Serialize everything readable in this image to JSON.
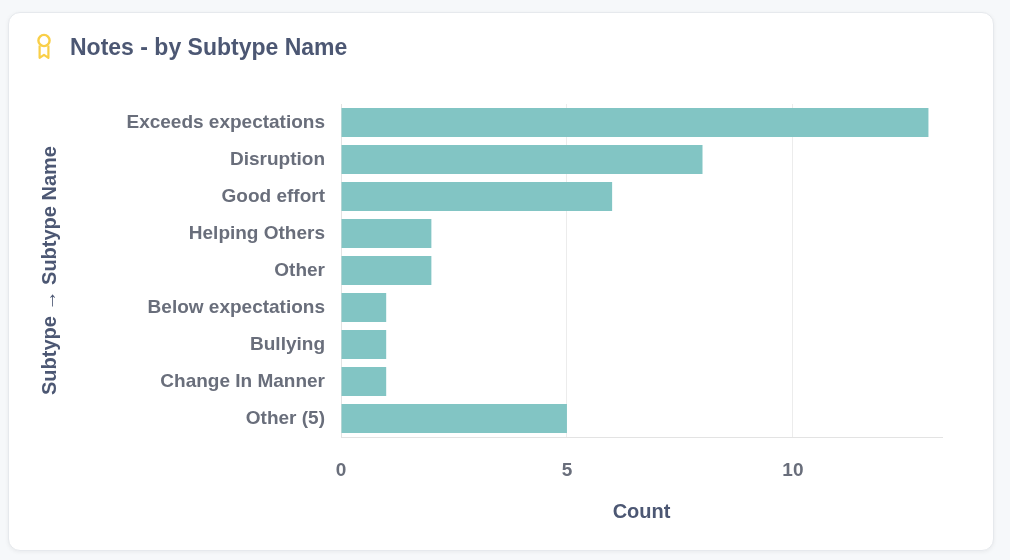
{
  "chart_data": {
    "type": "bar",
    "orientation": "horizontal",
    "title": "Notes - by Subtype Name",
    "xlabel": "Count",
    "ylabel": "Subtype → Subtype Name",
    "categories": [
      "Exceeds expectations",
      "Disruption",
      "Good effort",
      "Helping Others",
      "Other",
      "Below expectations",
      "Bullying",
      "Change In Manner",
      "Other (5)"
    ],
    "values": [
      13,
      8,
      6,
      2,
      2,
      1,
      1,
      1,
      5
    ],
    "color": "#82c5c4",
    "xlim": [
      0,
      13.3
    ],
    "xticks": [
      0,
      5,
      10
    ],
    "grid": "x"
  }
}
